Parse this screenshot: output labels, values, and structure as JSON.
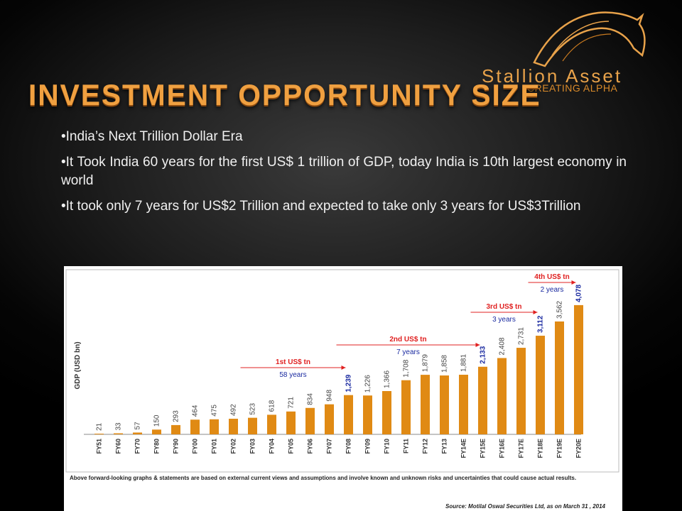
{
  "brand": {
    "name": "Stallion Asset",
    "tagline": "CREATING ALPHA",
    "accent_color": "#e8a24a"
  },
  "title": "INVESTMENT OPPORTUNITY SIZE",
  "bullets": [
    "India’s Next Trillion Dollar Era",
    "It Took India 60 years for the first US$ 1 trillion of GDP, today India is 10th largest economy in world",
    "It took only 7 years for US$2 Trillion and expected to take only 3 years for US$3Trillion"
  ],
  "chart_data": {
    "type": "bar",
    "ylabel": "GDP (USD bn)",
    "categories": [
      "FY51",
      "FY60",
      "FY70",
      "FY80",
      "FY90",
      "FY00",
      "FY01",
      "FY02",
      "FY03",
      "FY04",
      "FY05",
      "FY06",
      "FY07",
      "FY08",
      "FY09",
      "FY10",
      "FY11",
      "FY12",
      "FY13",
      "FY14E",
      "FY15E",
      "FY16E",
      "FY17E",
      "FY18E",
      "FY19E",
      "FY20E"
    ],
    "values": [
      21,
      33,
      57,
      150,
      293,
      464,
      475,
      492,
      523,
      618,
      721,
      834,
      948,
      1239,
      1226,
      1366,
      1708,
      1879,
      1858,
      1881,
      2133,
      2408,
      2731,
      3112,
      3562,
      4078
    ],
    "value_labels": [
      "21",
      "33",
      "57",
      "150",
      "293",
      "464",
      "475",
      "492",
      "523",
      "618",
      "721",
      "834",
      "948",
      "1,239",
      "1,226",
      "1,366",
      "1,708",
      "1,879",
      "1,858",
      "1,881",
      "2,133",
      "2,408",
      "2,731",
      "3,112",
      "3,562",
      "4,078"
    ],
    "highlighted": [
      "FY08",
      "FY15E",
      "FY18E",
      "FY20E"
    ],
    "ylim": [
      0,
      4300
    ],
    "bar_color": "#e08a14",
    "highlight_label_color": "#1a2aa0",
    "annotations": [
      {
        "title": "1st US$ tn",
        "subtitle": "58 years",
        "from": "FY04",
        "to": "FY08"
      },
      {
        "title": "2nd US$ tn",
        "subtitle": "7 years",
        "from": "FY09",
        "to": "FY15E"
      },
      {
        "title": "3rd US$ tn",
        "subtitle": "3 years",
        "from": "FY16E",
        "to": "FY18E"
      },
      {
        "title": "4th US$ tn",
        "subtitle": "2 years",
        "from": "FY19E",
        "to": "FY20E"
      }
    ],
    "annotation_color": "#e02020",
    "disclaimer": "Above forward-looking graphs & statements are based on external current views and assumptions and involve known and unknown risks and uncertainties that could cause actual results.",
    "source": "Source: Motilal Oswal Securities Ltd, as on March 31 , 2014"
  }
}
